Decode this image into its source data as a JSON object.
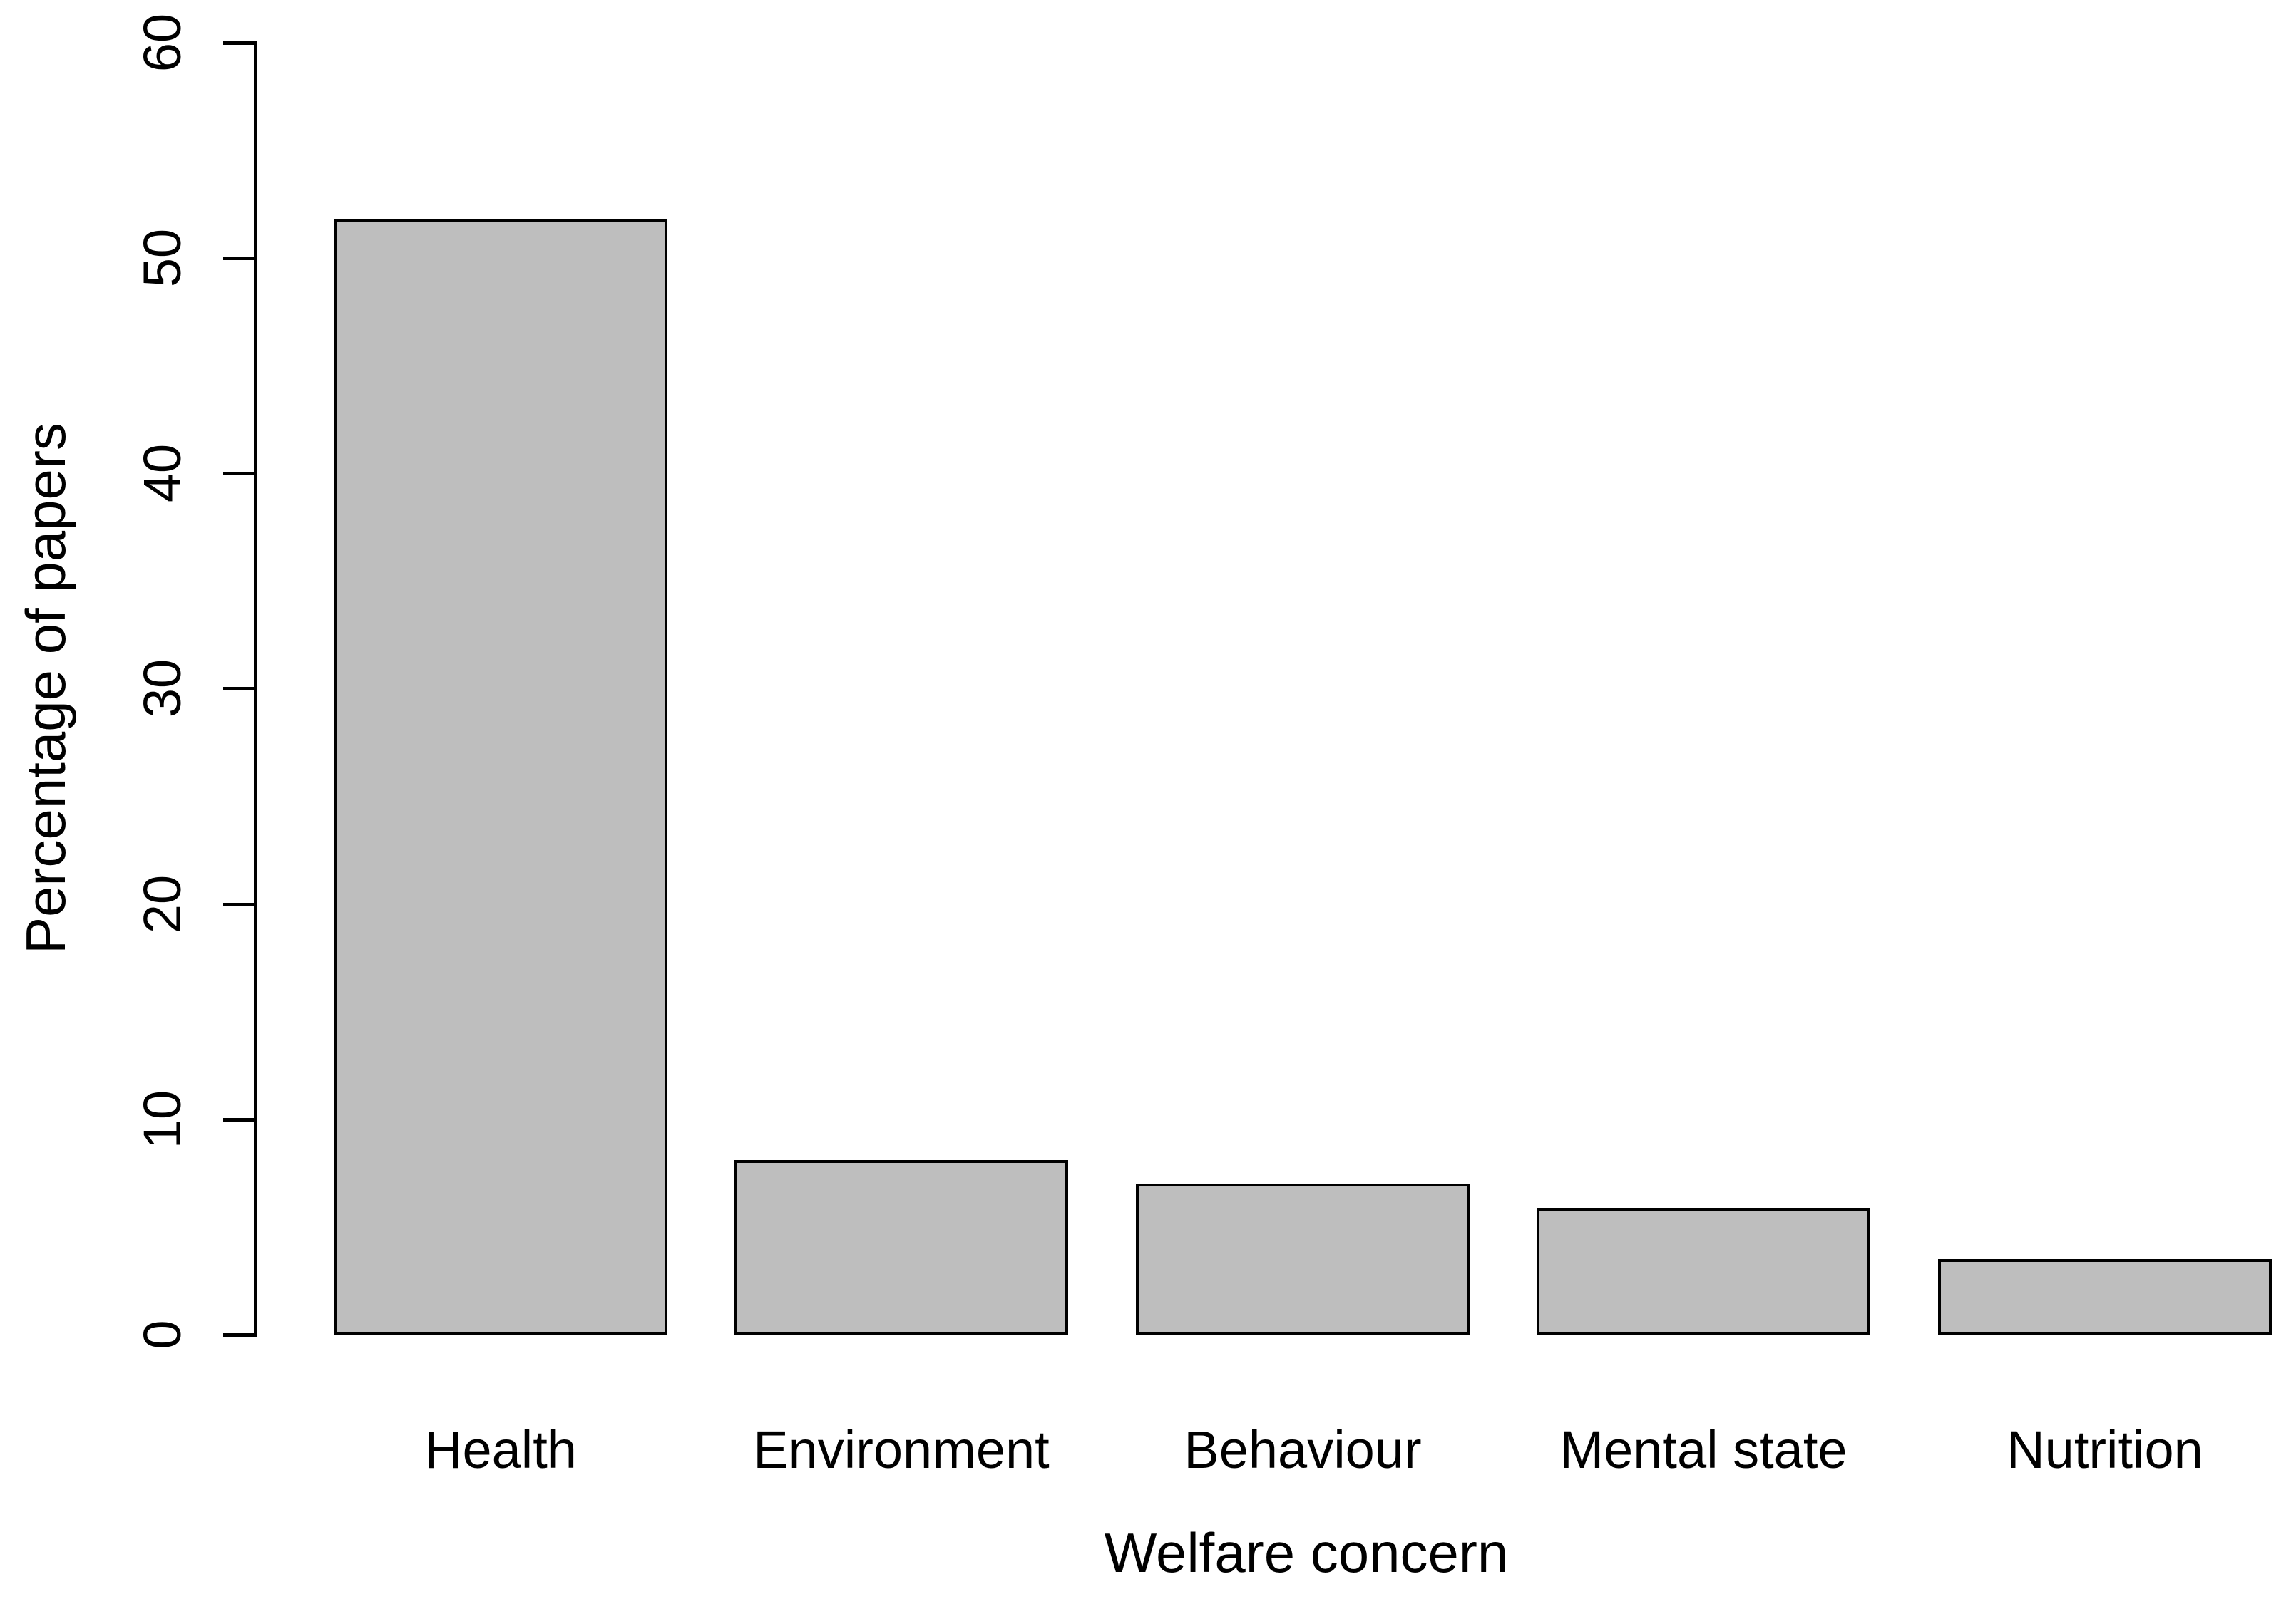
{
  "chart_data": {
    "type": "bar",
    "title": "",
    "categories": [
      "Health",
      "Environment",
      "Behaviour",
      "Mental state",
      "Nutrition"
    ],
    "values": [
      51.8,
      8.1,
      7.0,
      5.9,
      3.5
    ],
    "xlabel": "Welfare concern",
    "ylabel": "Percentage of papers",
    "ylim": [
      0,
      60
    ],
    "yticks": [
      0,
      10,
      20,
      30,
      40,
      50,
      60
    ],
    "grid": false,
    "legend": false,
    "bar_color": "#bebebe",
    "bar_border_color": "#000000",
    "text_color": "#000000",
    "background_color": "#ffffff"
  }
}
